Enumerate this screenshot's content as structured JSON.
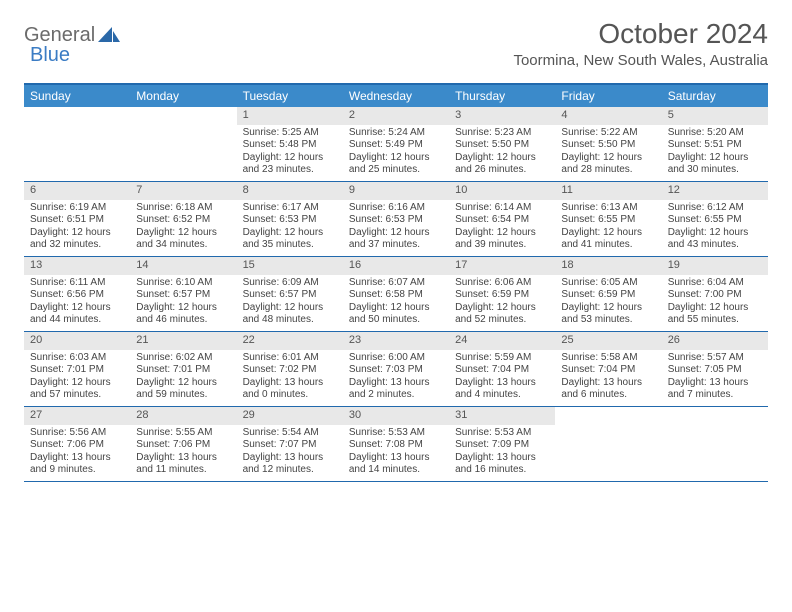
{
  "brand": {
    "name_a": "General",
    "name_b": "Blue"
  },
  "title": "October 2024",
  "location": "Toormina, New South Wales, Australia",
  "colors": {
    "header_bg": "#3b8aca",
    "border": "#2169ad",
    "daynum_bg": "#e8e8e8",
    "text": "#444444",
    "page_bg": "#ffffff"
  },
  "day_names": [
    "Sunday",
    "Monday",
    "Tuesday",
    "Wednesday",
    "Thursday",
    "Friday",
    "Saturday"
  ],
  "weeks": [
    [
      {
        "n": "",
        "sr": "",
        "ss": "",
        "dl": ""
      },
      {
        "n": "",
        "sr": "",
        "ss": "",
        "dl": ""
      },
      {
        "n": "1",
        "sr": "Sunrise: 5:25 AM",
        "ss": "Sunset: 5:48 PM",
        "dl": "Daylight: 12 hours and 23 minutes."
      },
      {
        "n": "2",
        "sr": "Sunrise: 5:24 AM",
        "ss": "Sunset: 5:49 PM",
        "dl": "Daylight: 12 hours and 25 minutes."
      },
      {
        "n": "3",
        "sr": "Sunrise: 5:23 AM",
        "ss": "Sunset: 5:50 PM",
        "dl": "Daylight: 12 hours and 26 minutes."
      },
      {
        "n": "4",
        "sr": "Sunrise: 5:22 AM",
        "ss": "Sunset: 5:50 PM",
        "dl": "Daylight: 12 hours and 28 minutes."
      },
      {
        "n": "5",
        "sr": "Sunrise: 5:20 AM",
        "ss": "Sunset: 5:51 PM",
        "dl": "Daylight: 12 hours and 30 minutes."
      }
    ],
    [
      {
        "n": "6",
        "sr": "Sunrise: 6:19 AM",
        "ss": "Sunset: 6:51 PM",
        "dl": "Daylight: 12 hours and 32 minutes."
      },
      {
        "n": "7",
        "sr": "Sunrise: 6:18 AM",
        "ss": "Sunset: 6:52 PM",
        "dl": "Daylight: 12 hours and 34 minutes."
      },
      {
        "n": "8",
        "sr": "Sunrise: 6:17 AM",
        "ss": "Sunset: 6:53 PM",
        "dl": "Daylight: 12 hours and 35 minutes."
      },
      {
        "n": "9",
        "sr": "Sunrise: 6:16 AM",
        "ss": "Sunset: 6:53 PM",
        "dl": "Daylight: 12 hours and 37 minutes."
      },
      {
        "n": "10",
        "sr": "Sunrise: 6:14 AM",
        "ss": "Sunset: 6:54 PM",
        "dl": "Daylight: 12 hours and 39 minutes."
      },
      {
        "n": "11",
        "sr": "Sunrise: 6:13 AM",
        "ss": "Sunset: 6:55 PM",
        "dl": "Daylight: 12 hours and 41 minutes."
      },
      {
        "n": "12",
        "sr": "Sunrise: 6:12 AM",
        "ss": "Sunset: 6:55 PM",
        "dl": "Daylight: 12 hours and 43 minutes."
      }
    ],
    [
      {
        "n": "13",
        "sr": "Sunrise: 6:11 AM",
        "ss": "Sunset: 6:56 PM",
        "dl": "Daylight: 12 hours and 44 minutes."
      },
      {
        "n": "14",
        "sr": "Sunrise: 6:10 AM",
        "ss": "Sunset: 6:57 PM",
        "dl": "Daylight: 12 hours and 46 minutes."
      },
      {
        "n": "15",
        "sr": "Sunrise: 6:09 AM",
        "ss": "Sunset: 6:57 PM",
        "dl": "Daylight: 12 hours and 48 minutes."
      },
      {
        "n": "16",
        "sr": "Sunrise: 6:07 AM",
        "ss": "Sunset: 6:58 PM",
        "dl": "Daylight: 12 hours and 50 minutes."
      },
      {
        "n": "17",
        "sr": "Sunrise: 6:06 AM",
        "ss": "Sunset: 6:59 PM",
        "dl": "Daylight: 12 hours and 52 minutes."
      },
      {
        "n": "18",
        "sr": "Sunrise: 6:05 AM",
        "ss": "Sunset: 6:59 PM",
        "dl": "Daylight: 12 hours and 53 minutes."
      },
      {
        "n": "19",
        "sr": "Sunrise: 6:04 AM",
        "ss": "Sunset: 7:00 PM",
        "dl": "Daylight: 12 hours and 55 minutes."
      }
    ],
    [
      {
        "n": "20",
        "sr": "Sunrise: 6:03 AM",
        "ss": "Sunset: 7:01 PM",
        "dl": "Daylight: 12 hours and 57 minutes."
      },
      {
        "n": "21",
        "sr": "Sunrise: 6:02 AM",
        "ss": "Sunset: 7:01 PM",
        "dl": "Daylight: 12 hours and 59 minutes."
      },
      {
        "n": "22",
        "sr": "Sunrise: 6:01 AM",
        "ss": "Sunset: 7:02 PM",
        "dl": "Daylight: 13 hours and 0 minutes."
      },
      {
        "n": "23",
        "sr": "Sunrise: 6:00 AM",
        "ss": "Sunset: 7:03 PM",
        "dl": "Daylight: 13 hours and 2 minutes."
      },
      {
        "n": "24",
        "sr": "Sunrise: 5:59 AM",
        "ss": "Sunset: 7:04 PM",
        "dl": "Daylight: 13 hours and 4 minutes."
      },
      {
        "n": "25",
        "sr": "Sunrise: 5:58 AM",
        "ss": "Sunset: 7:04 PM",
        "dl": "Daylight: 13 hours and 6 minutes."
      },
      {
        "n": "26",
        "sr": "Sunrise: 5:57 AM",
        "ss": "Sunset: 7:05 PM",
        "dl": "Daylight: 13 hours and 7 minutes."
      }
    ],
    [
      {
        "n": "27",
        "sr": "Sunrise: 5:56 AM",
        "ss": "Sunset: 7:06 PM",
        "dl": "Daylight: 13 hours and 9 minutes."
      },
      {
        "n": "28",
        "sr": "Sunrise: 5:55 AM",
        "ss": "Sunset: 7:06 PM",
        "dl": "Daylight: 13 hours and 11 minutes."
      },
      {
        "n": "29",
        "sr": "Sunrise: 5:54 AM",
        "ss": "Sunset: 7:07 PM",
        "dl": "Daylight: 13 hours and 12 minutes."
      },
      {
        "n": "30",
        "sr": "Sunrise: 5:53 AM",
        "ss": "Sunset: 7:08 PM",
        "dl": "Daylight: 13 hours and 14 minutes."
      },
      {
        "n": "31",
        "sr": "Sunrise: 5:53 AM",
        "ss": "Sunset: 7:09 PM",
        "dl": "Daylight: 13 hours and 16 minutes."
      },
      {
        "n": "",
        "sr": "",
        "ss": "",
        "dl": ""
      },
      {
        "n": "",
        "sr": "",
        "ss": "",
        "dl": ""
      }
    ]
  ]
}
